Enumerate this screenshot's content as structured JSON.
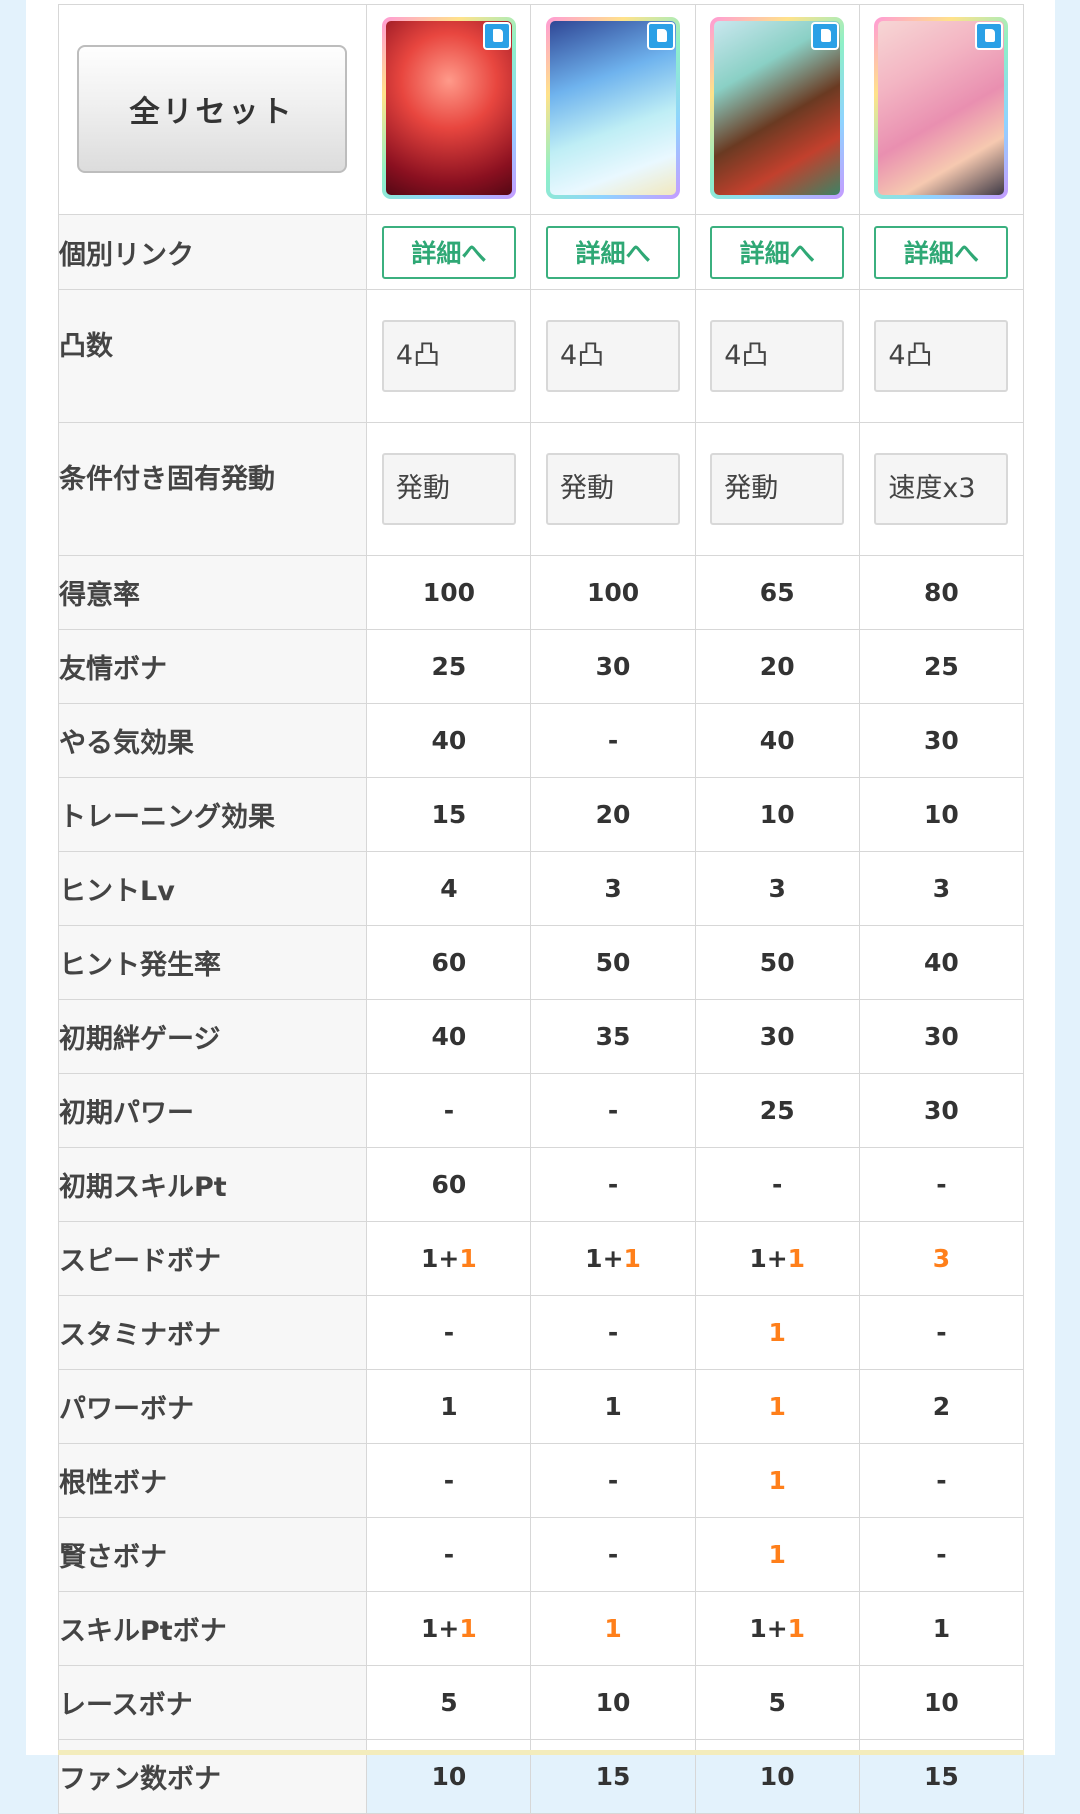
{
  "reset_label": "全リセット",
  "cards": [
    {
      "link_label": "詳細へ",
      "limit_break": "4凸",
      "condition": "発動"
    },
    {
      "link_label": "詳細へ",
      "limit_break": "4凸",
      "condition": "発動"
    },
    {
      "link_label": "詳細へ",
      "limit_break": "4凸",
      "condition": "発動"
    },
    {
      "link_label": "詳細へ",
      "limit_break": "4凸",
      "condition": "速度x3"
    }
  ],
  "labels": {
    "link": "個別リンク",
    "limit_break": "凸数",
    "condition": "条件付き固有発動"
  },
  "stats": [
    {
      "label": "得意率",
      "values": [
        [
          "100",
          ""
        ],
        [
          "100",
          ""
        ],
        [
          "65",
          ""
        ],
        [
          "80",
          ""
        ]
      ]
    },
    {
      "label": "友情ボナ",
      "values": [
        [
          "25",
          ""
        ],
        [
          "30",
          ""
        ],
        [
          "20",
          ""
        ],
        [
          "25",
          ""
        ]
      ]
    },
    {
      "label": "やる気効果",
      "values": [
        [
          "40",
          ""
        ],
        [
          "-",
          ""
        ],
        [
          "40",
          ""
        ],
        [
          "30",
          ""
        ]
      ]
    },
    {
      "label": "トレーニング効果",
      "values": [
        [
          "15",
          ""
        ],
        [
          "20",
          ""
        ],
        [
          "10",
          ""
        ],
        [
          "10",
          ""
        ]
      ]
    },
    {
      "label": "ヒントLv",
      "values": [
        [
          "4",
          ""
        ],
        [
          "3",
          ""
        ],
        [
          "3",
          ""
        ],
        [
          "3",
          ""
        ]
      ]
    },
    {
      "label": "ヒント発生率",
      "values": [
        [
          "60",
          ""
        ],
        [
          "50",
          ""
        ],
        [
          "50",
          ""
        ],
        [
          "40",
          ""
        ]
      ]
    },
    {
      "label": "初期絆ゲージ",
      "values": [
        [
          "40",
          ""
        ],
        [
          "35",
          ""
        ],
        [
          "30",
          ""
        ],
        [
          "30",
          ""
        ]
      ]
    },
    {
      "label": "初期パワー",
      "values": [
        [
          "-",
          ""
        ],
        [
          "-",
          ""
        ],
        [
          "25",
          ""
        ],
        [
          "30",
          ""
        ]
      ]
    },
    {
      "label": "初期スキルPt",
      "values": [
        [
          "60",
          ""
        ],
        [
          "-",
          ""
        ],
        [
          "-",
          ""
        ],
        [
          "-",
          ""
        ]
      ]
    },
    {
      "label": "スピードボナ",
      "values": [
        [
          "1+",
          "1"
        ],
        [
          "1+",
          "1"
        ],
        [
          "1+",
          "1"
        ],
        [
          "",
          "3"
        ]
      ]
    },
    {
      "label": "スタミナボナ",
      "values": [
        [
          "-",
          ""
        ],
        [
          "-",
          ""
        ],
        [
          "",
          "1"
        ],
        [
          "-",
          ""
        ]
      ]
    },
    {
      "label": "パワーボナ",
      "values": [
        [
          "1",
          ""
        ],
        [
          "1",
          ""
        ],
        [
          "",
          "1"
        ],
        [
          "2",
          ""
        ]
      ]
    },
    {
      "label": "根性ボナ",
      "values": [
        [
          "-",
          ""
        ],
        [
          "-",
          ""
        ],
        [
          "",
          "1"
        ],
        [
          "-",
          ""
        ]
      ]
    },
    {
      "label": "賢さボナ",
      "values": [
        [
          "-",
          ""
        ],
        [
          "-",
          ""
        ],
        [
          "",
          "1"
        ],
        [
          "-",
          ""
        ]
      ]
    },
    {
      "label": "スキルPtボナ",
      "values": [
        [
          "1+",
          "1"
        ],
        [
          "",
          "1"
        ],
        [
          "1+",
          "1"
        ],
        [
          "1",
          ""
        ]
      ]
    },
    {
      "label": "レースボナ",
      "values": [
        [
          "5",
          ""
        ],
        [
          "10",
          ""
        ],
        [
          "5",
          ""
        ],
        [
          "10",
          ""
        ]
      ]
    },
    {
      "label": "ファン数ボナ",
      "values": [
        [
          "10",
          ""
        ],
        [
          "15",
          ""
        ],
        [
          "10",
          ""
        ],
        [
          "15",
          ""
        ]
      ]
    }
  ],
  "colors": {
    "highlight": "#ff7f1a",
    "link_green": "#2fa875",
    "page_bg": "#e3f2fc",
    "label_bg": "#f7f7f7"
  }
}
